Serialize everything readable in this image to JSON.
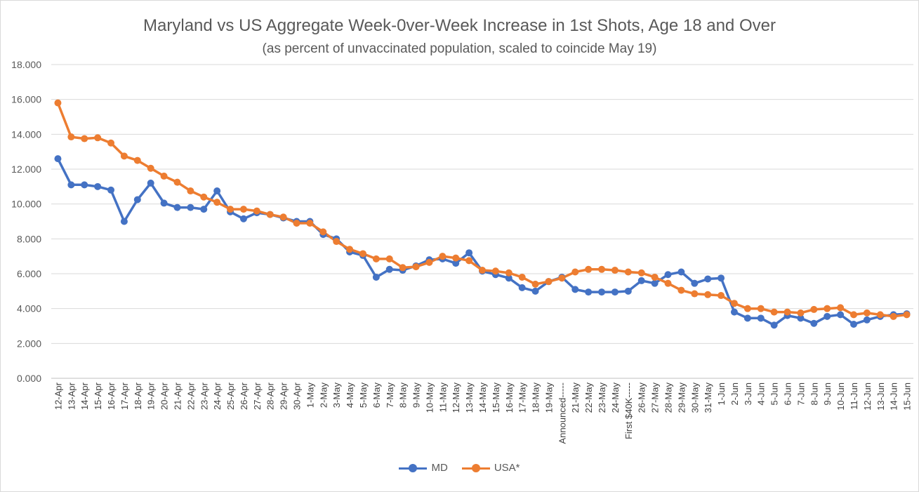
{
  "chart_data": {
    "type": "line",
    "title": "Maryland vs US Aggregate Week-0ver-Week  Increase in 1st Shots, Age 18 and Over",
    "subtitle": "(as percent of unvaccinated population, scaled to coincide May 19)",
    "xlabel": "",
    "ylabel": "",
    "ylim": [
      0,
      18
    ],
    "yticks": [
      "0.000",
      "2.000",
      "4.000",
      "6.000",
      "8.000",
      "10.000",
      "12.000",
      "14.000",
      "16.000",
      "18.000"
    ],
    "grid": true,
    "legend_position": "bottom",
    "categories": [
      "12-Apr",
      "13-Apr",
      "14-Apr",
      "15-Apr",
      "16-Apr",
      "17-Apr",
      "18-Apr",
      "19-Apr",
      "20-Apr",
      "21-Apr",
      "22-Apr",
      "23-Apr",
      "24-Apr",
      "25-Apr",
      "26-Apr",
      "27-Apr",
      "28-Apr",
      "29-Apr",
      "30-Apr",
      "1-May",
      "2-May",
      "3-May",
      "4-May",
      "5-May",
      "6-May",
      "7-May",
      "8-May",
      "9-May",
      "10-May",
      "11-May",
      "12-May",
      "13-May",
      "14-May",
      "15-May",
      "16-May",
      "17-May",
      "18-May",
      "19-May",
      "Announced-----",
      "21-May",
      "22-May",
      "23-May",
      "24-May",
      "First $40K-----",
      "26-May",
      "27-May",
      "28-May",
      "29-May",
      "30-May",
      "31-May",
      "1-Jun",
      "2-Jun",
      "3-Jun",
      "4-Jun",
      "5-Jun",
      "6-Jun",
      "7-Jun",
      "8-Jun",
      "9-Jun",
      "10-Jun",
      "11-Jun",
      "12-Jun",
      "13-Jun",
      "14-Jun",
      "15-Jun"
    ],
    "series": [
      {
        "name": "MD",
        "color": "#4472c4",
        "values": [
          12.6,
          11.1,
          11.1,
          11.0,
          10.8,
          9.0,
          10.25,
          11.2,
          10.05,
          9.8,
          9.8,
          9.7,
          10.75,
          9.55,
          9.15,
          9.5,
          9.4,
          9.2,
          9.0,
          9.0,
          8.25,
          8.0,
          7.25,
          7.05,
          5.8,
          6.25,
          6.2,
          6.45,
          6.8,
          6.85,
          6.6,
          7.2,
          6.15,
          5.95,
          5.75,
          5.2,
          5.0,
          5.55,
          5.8,
          5.1,
          4.95,
          4.95,
          4.95,
          5.0,
          5.6,
          5.45,
          5.95,
          6.1,
          5.45,
          5.7,
          5.75,
          3.8,
          3.45,
          3.45,
          3.05,
          3.6,
          3.45,
          3.15,
          3.55,
          3.65,
          3.1,
          3.35,
          3.55,
          3.65,
          3.7
        ]
      },
      {
        "name": "USA*",
        "color": "#ed7d31",
        "values": [
          15.8,
          13.85,
          13.75,
          13.8,
          13.5,
          12.75,
          12.5,
          12.05,
          11.6,
          11.25,
          10.75,
          10.4,
          10.1,
          9.7,
          9.7,
          9.6,
          9.4,
          9.25,
          8.9,
          8.9,
          8.4,
          7.85,
          7.4,
          7.15,
          6.85,
          6.85,
          6.35,
          6.4,
          6.65,
          7.0,
          6.9,
          6.75,
          6.2,
          6.15,
          6.05,
          5.8,
          5.4,
          5.55,
          5.75,
          6.1,
          6.25,
          6.25,
          6.2,
          6.1,
          6.05,
          5.8,
          5.45,
          5.05,
          4.85,
          4.8,
          4.75,
          4.3,
          4.0,
          4.0,
          3.8,
          3.8,
          3.75,
          3.95,
          4.0,
          4.05,
          3.65,
          3.75,
          3.65,
          3.55,
          3.65
        ]
      }
    ]
  }
}
